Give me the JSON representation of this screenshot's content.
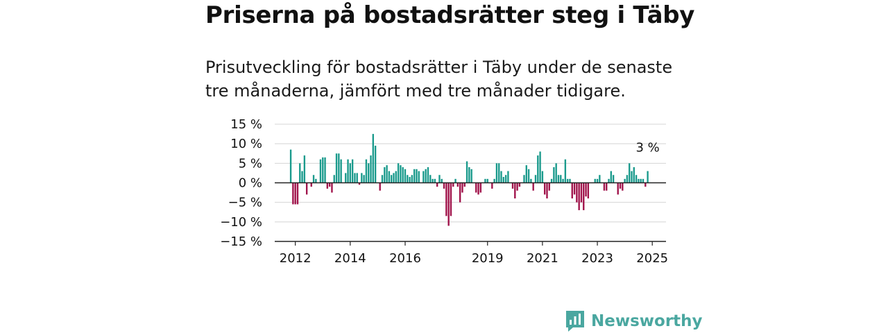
{
  "title": "Priserna på bostadsrätter steg i Täby",
  "subtitle": "Prisutveckling för bostadsrätter i Täby under de senaste tre månaderna, jämfört med tre månader tidigare.",
  "logo": {
    "text": "Newsworthy",
    "icon": "newsworthy-logo-icon"
  },
  "colors": {
    "positive": "#1a9a8c",
    "negative": "#a0124a",
    "zero_line": "#222222",
    "grid": "#d4d4d4",
    "brand": "#4aa7a0"
  },
  "chart_data": {
    "type": "bar",
    "ylim": [
      -15,
      15
    ],
    "grid": true,
    "y_ticks": [
      15,
      10,
      5,
      0,
      -5,
      -10,
      -15
    ],
    "y_tick_labels": [
      "15 %",
      "10 %",
      "5 %",
      "0 %",
      "−5 %",
      "−10 %",
      "−15 %"
    ],
    "x_tick_labels": [
      {
        "label": "2012",
        "year": 2012
      },
      {
        "label": "2014",
        "year": 2014
      },
      {
        "label": "2016",
        "year": 2016
      },
      {
        "label": "2019",
        "year": 2019
      },
      {
        "label": "2021",
        "year": 2021
      },
      {
        "label": "2023",
        "year": 2023
      },
      {
        "label": "2025",
        "year": 2025
      }
    ],
    "x_start": "2011-04",
    "x_end": "2025-07",
    "series_start": "2011-11",
    "annotation": {
      "text": "3 %",
      "value": 3
    },
    "values": [
      8.5,
      -5.5,
      -5.5,
      -5.5,
      5,
      3,
      7,
      -3,
      0,
      -1,
      2,
      1,
      0,
      6,
      6.5,
      6.5,
      -1.5,
      -1,
      -2.5,
      2,
      7.5,
      7.5,
      6,
      0,
      2.5,
      6,
      5,
      6,
      2.5,
      2.5,
      -0.5,
      2.5,
      2,
      6,
      5,
      7,
      12.5,
      9.5,
      0,
      -2,
      2,
      4,
      4.5,
      3,
      2,
      2.5,
      3,
      5,
      4.5,
      4,
      3.5,
      2,
      1.5,
      2,
      3.5,
      3.5,
      3,
      0,
      3,
      3.5,
      4,
      2,
      1,
      1,
      -1,
      2,
      1,
      -1.5,
      -8.5,
      -11,
      -8.5,
      -1,
      1,
      -1,
      -5,
      -2.5,
      -1,
      5.5,
      4,
      3.5,
      0,
      -2.5,
      -3,
      -2.5,
      0,
      1,
      1,
      0,
      -1.5,
      1,
      5,
      5,
      3,
      1.5,
      2,
      3,
      0,
      -1.5,
      -4,
      -2,
      -1,
      0,
      2,
      4.5,
      3.5,
      1,
      -2,
      2,
      7,
      8,
      3,
      -3,
      -4,
      -2,
      1,
      4,
      5,
      2,
      2,
      1,
      6,
      1,
      1,
      -4,
      -3,
      -5,
      -7,
      -5,
      -7,
      -3.5,
      -4,
      0,
      0,
      1,
      1,
      2,
      0,
      -2,
      -2,
      1,
      3,
      2,
      0,
      -3,
      -1.5,
      -2,
      1,
      2,
      5,
      3,
      4,
      2,
      1,
      1,
      1,
      -1,
      3
    ]
  }
}
